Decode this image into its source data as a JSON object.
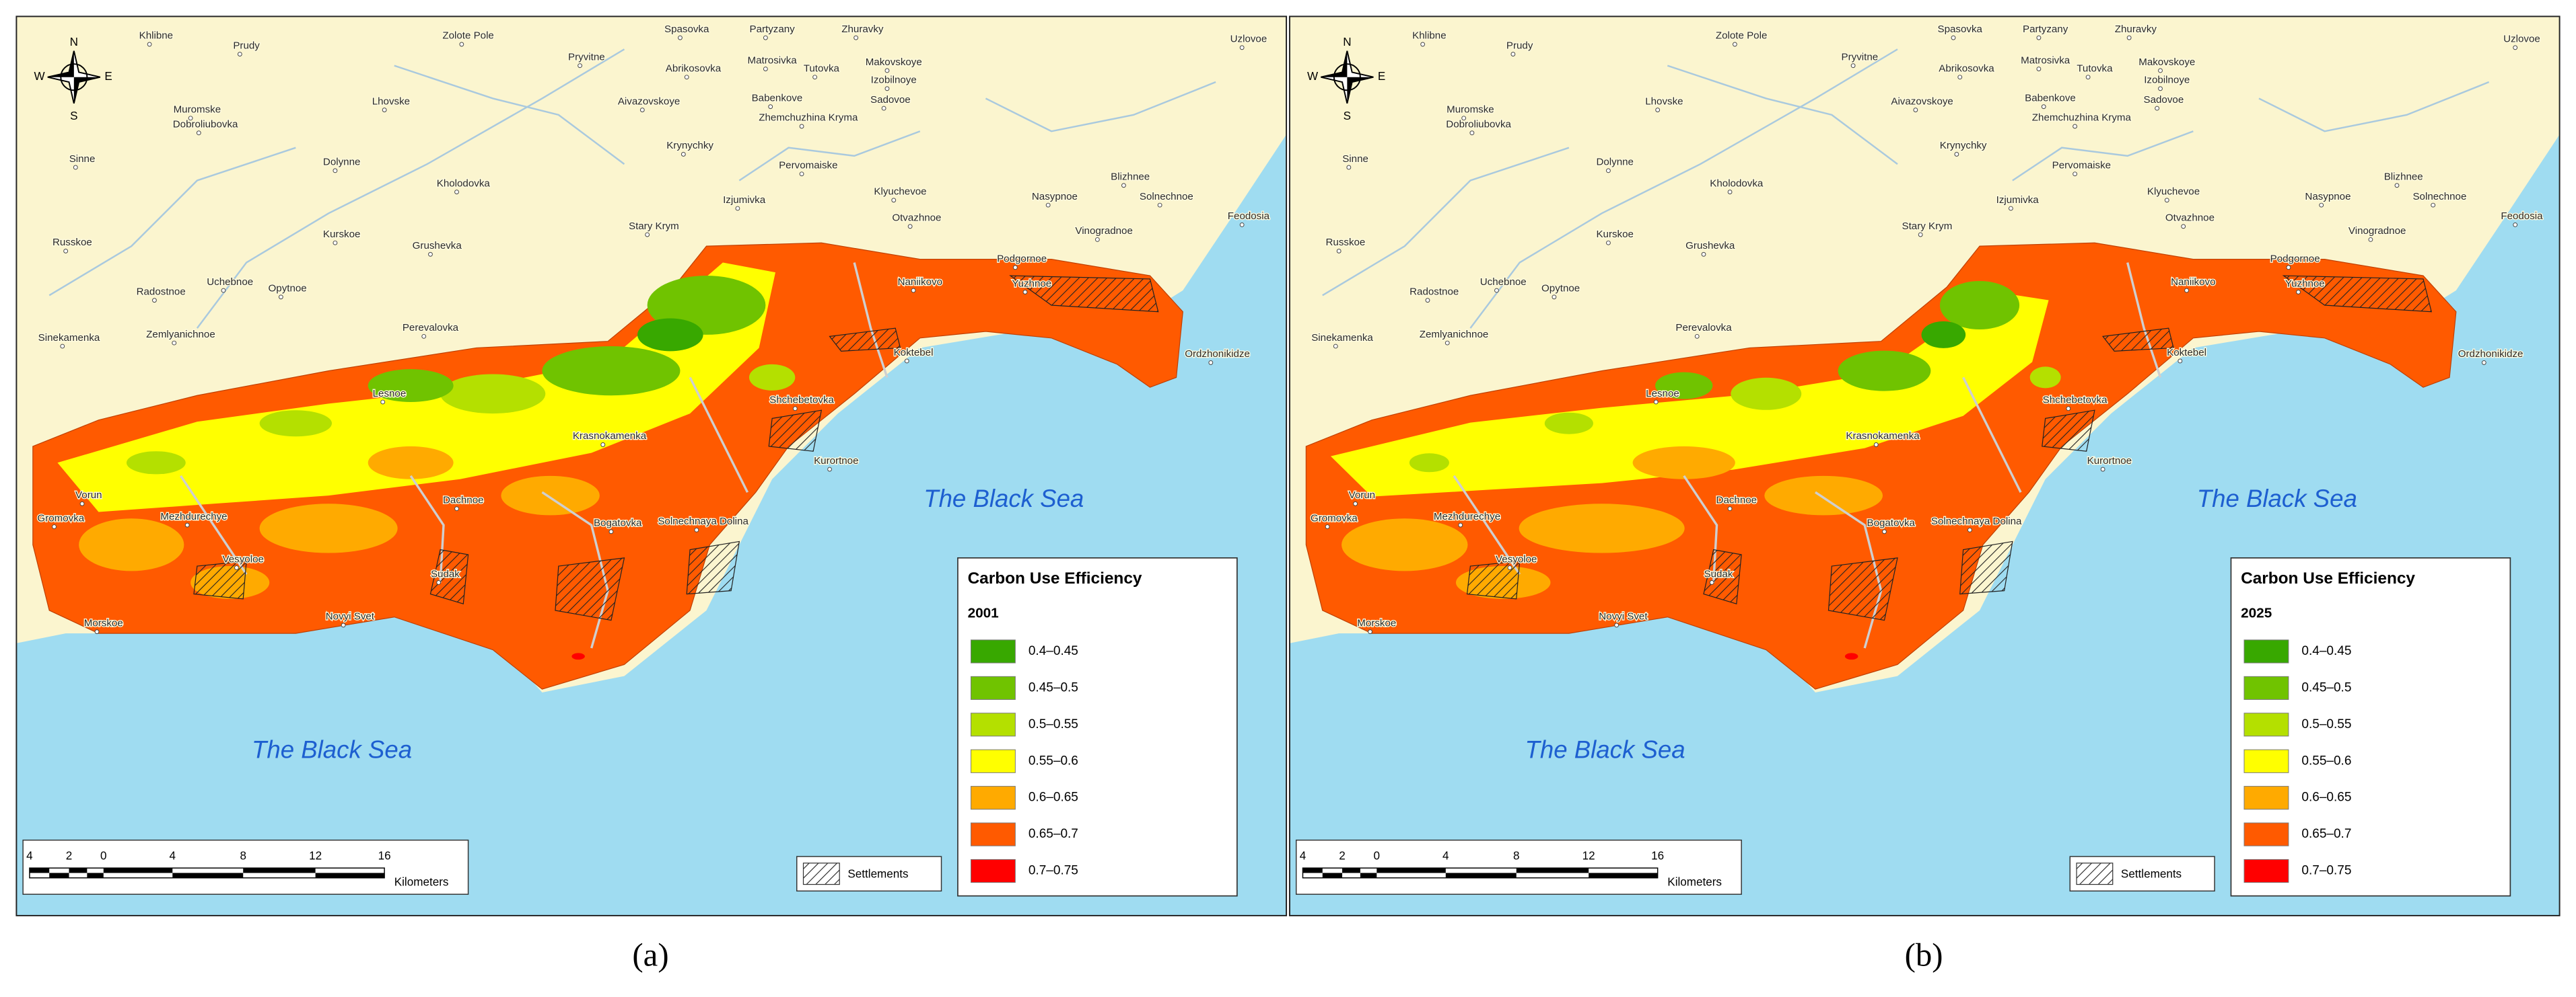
{
  "panels": [
    {
      "label": "(a)",
      "legend": {
        "title": "Carbon Use Efficiency",
        "year": "2001"
      }
    },
    {
      "label": "(b)",
      "legend": {
        "title": "Carbon Use Efficiency",
        "year": "2025"
      }
    }
  ],
  "legend_classes": [
    {
      "label": "0.4–0.45",
      "color": "#38a800"
    },
    {
      "label": "0.45–0.5",
      "color": "#70c300"
    },
    {
      "label": "0.5–0.55",
      "color": "#b4e000"
    },
    {
      "label": "0.55–0.6",
      "color": "#ffff00"
    },
    {
      "label": "0.6–0.65",
      "color": "#ffaa00"
    },
    {
      "label": "0.65–0.7",
      "color": "#ff5a00"
    },
    {
      "label": "0.7–0.75",
      "color": "#ff0000"
    }
  ],
  "sea_label": "The Black Sea",
  "settlements_label": "Settlements",
  "scale_bar": {
    "ticks": [
      "4",
      "2",
      "0",
      "4",
      "8",
      "12",
      "16"
    ],
    "unit": "Kilometers"
  },
  "compass": {
    "n": "N",
    "s": "S",
    "w": "W",
    "e": "E"
  },
  "place_names": [
    "Khlibne",
    "Prudy",
    "Zolote Pole",
    "Spasovka",
    "Partyzany",
    "Zhuravky",
    "Uzlovoe",
    "Pryvitne",
    "Abrikosovka",
    "Matrosivka",
    "Tutovka",
    "Makovskoye",
    "Izobilnoye",
    "Lhovske",
    "Aivazovskoye",
    "Babenkove",
    "Sadovoe",
    "Muromske",
    "Dobroliubovka",
    "Zhemchuzhina Kryma",
    "Sinne",
    "Dolynne",
    "Krynychky",
    "Pervomaiske",
    "Blizhnee",
    "Kholodovka",
    "Izjumivka",
    "Klyuchevoe",
    "Nasypnoe",
    "Solnechnoe",
    "Stary Krym",
    "Otvazhnoe",
    "Vinogradnoe",
    "Feodosia",
    "Russkoe",
    "Kurskoe",
    "Grushevka",
    "Podgornoe",
    "Uchebnoe",
    "Opytnoe",
    "Radostnoe",
    "Naniikovo",
    "Yuzhnoe",
    "Perevalovka",
    "Sinekamenka",
    "Zemlyanichnoe",
    "Koktebel",
    "Ordzhonikidze",
    "Lesnoe",
    "Shchebetovka",
    "Krasnokamenka",
    "Kurortnoe",
    "Vorun",
    "Dachnoe",
    "Gromovka",
    "Mezhdurechye",
    "Bogatovka",
    "Solnechnaya Dolina",
    "Vesyoloe",
    "Sudak",
    "Novyi Svet",
    "Morskoe"
  ]
}
